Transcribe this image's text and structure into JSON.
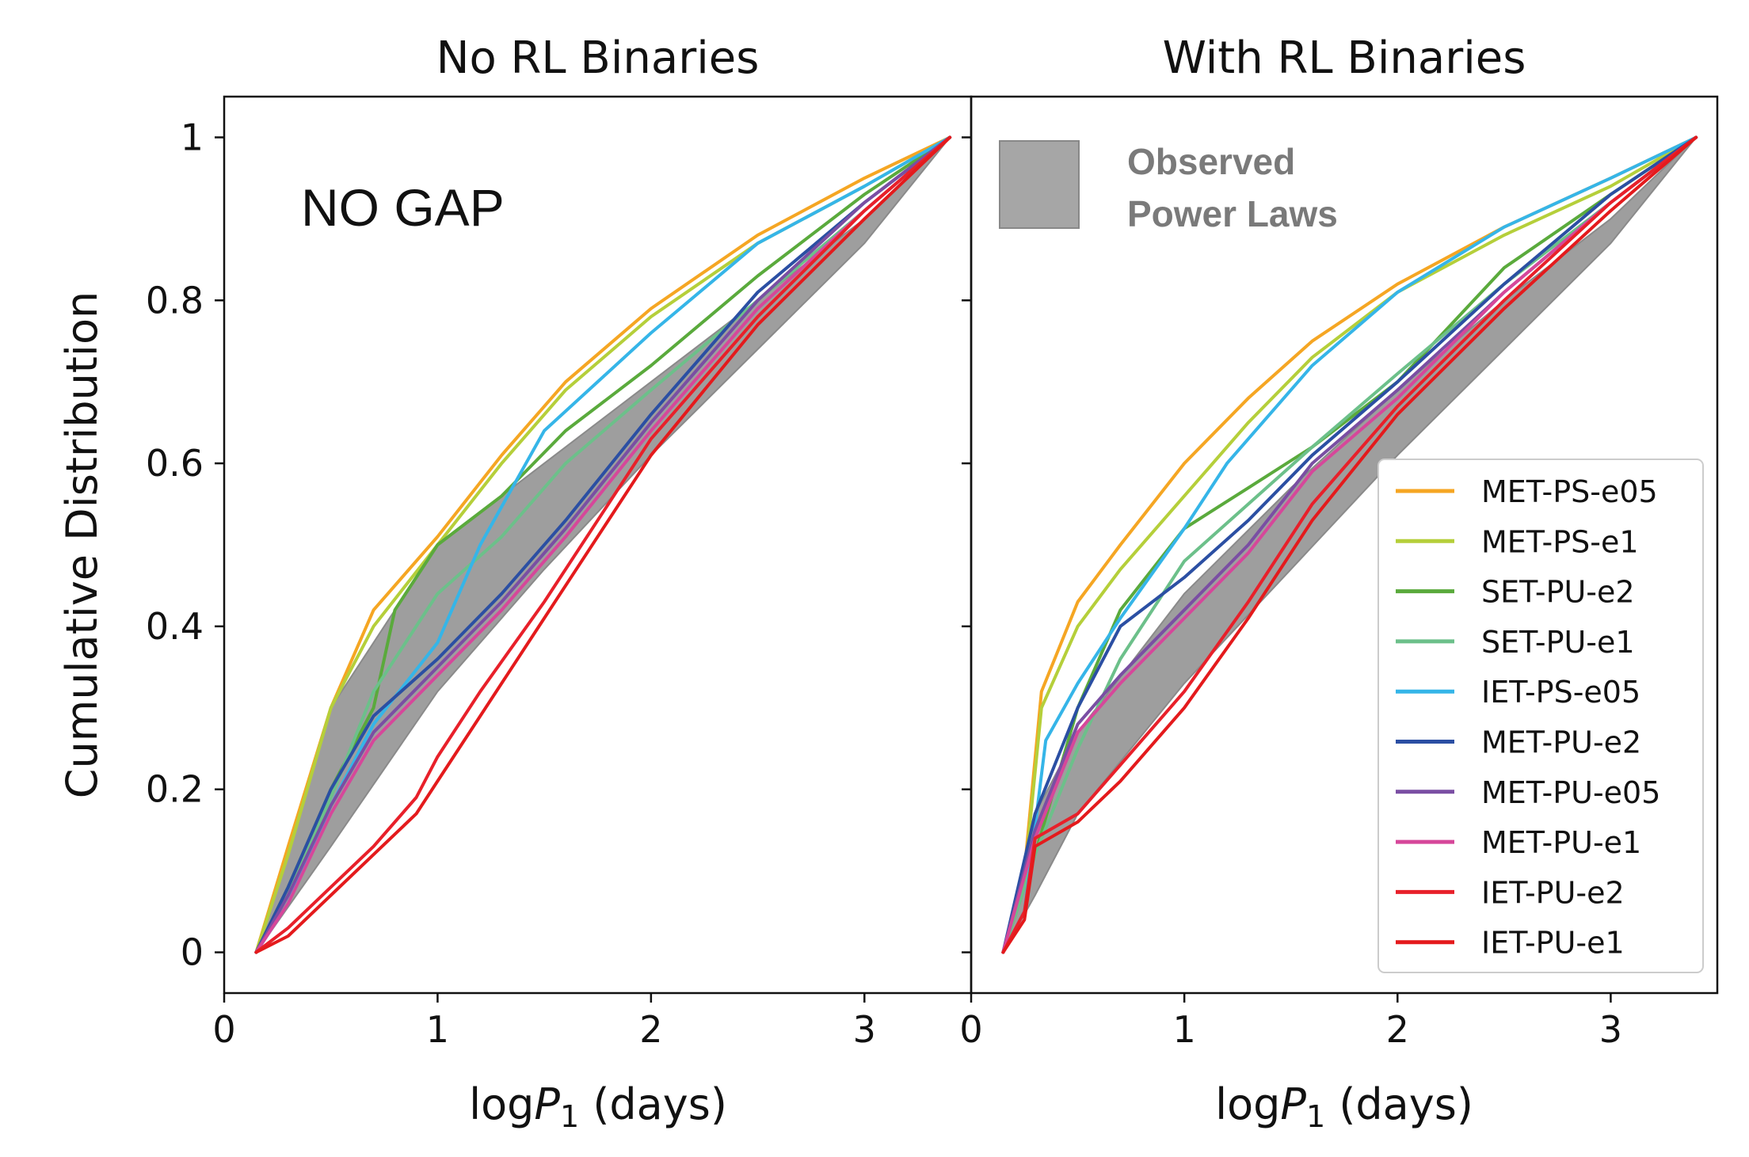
{
  "chart_data": [
    {
      "type": "line",
      "title": "No RL Binaries",
      "annotation": "NO GAP",
      "xlabel": "log",
      "xlabel_var": "P",
      "xlabel_sub": "1",
      "xlabel_unit": "(days)",
      "ylabel": "Cumulative Distribution",
      "xlim": [
        0,
        3.5
      ],
      "ylim": [
        -0.05,
        1.05
      ],
      "xticks": [
        "0",
        "1",
        "2",
        "3"
      ],
      "yticks": [
        "0",
        "0.2",
        "0.4",
        "0.6",
        "0.8",
        "1"
      ],
      "band": {
        "label": "Observed Power Laws",
        "x": [
          0.15,
          0.5,
          1.0,
          1.5,
          2.0,
          2.5,
          3.0,
          3.4
        ],
        "upper": [
          0.0,
          0.3,
          0.5,
          0.6,
          0.7,
          0.8,
          0.9,
          1.0
        ],
        "lower": [
          0.0,
          0.13,
          0.32,
          0.47,
          0.61,
          0.74,
          0.87,
          1.0
        ]
      },
      "series": [
        {
          "name": "MET-PS-e05",
          "color": "#f5a623",
          "x": [
            0.15,
            0.3,
            0.5,
            0.7,
            1.0,
            1.3,
            1.6,
            2.0,
            2.5,
            3.0,
            3.4
          ],
          "y": [
            0,
            0.13,
            0.3,
            0.42,
            0.51,
            0.61,
            0.7,
            0.79,
            0.88,
            0.95,
            1
          ]
        },
        {
          "name": "MET-PS-e1",
          "color": "#b5cf3a",
          "x": [
            0.15,
            0.3,
            0.5,
            0.7,
            1.0,
            1.3,
            1.6,
            2.0,
            2.5,
            3.0,
            3.4
          ],
          "y": [
            0,
            0.12,
            0.3,
            0.4,
            0.5,
            0.6,
            0.69,
            0.78,
            0.87,
            0.94,
            1
          ]
        },
        {
          "name": "SET-PU-e2",
          "color": "#5aaa3c",
          "x": [
            0.15,
            0.3,
            0.5,
            0.7,
            0.8,
            1.0,
            1.3,
            1.6,
            2.0,
            2.5,
            3.0,
            3.4
          ],
          "y": [
            0,
            0.08,
            0.2,
            0.3,
            0.42,
            0.5,
            0.56,
            0.64,
            0.72,
            0.83,
            0.93,
            1
          ]
        },
        {
          "name": "SET-PU-e1",
          "color": "#6cc08a",
          "x": [
            0.15,
            0.3,
            0.5,
            0.7,
            1.0,
            1.3,
            1.6,
            2.0,
            2.5,
            3.0,
            3.4
          ],
          "y": [
            0,
            0.07,
            0.19,
            0.32,
            0.44,
            0.51,
            0.6,
            0.69,
            0.8,
            0.91,
            1
          ]
        },
        {
          "name": "IET-PS-e05",
          "color": "#35b5e8",
          "x": [
            0.15,
            0.3,
            0.5,
            0.7,
            1.0,
            1.2,
            1.5,
            2.0,
            2.5,
            3.0,
            3.4
          ],
          "y": [
            0,
            0.06,
            0.18,
            0.28,
            0.38,
            0.5,
            0.64,
            0.76,
            0.87,
            0.94,
            1
          ]
        },
        {
          "name": "MET-PU-e2",
          "color": "#2b4fa3",
          "x": [
            0.15,
            0.3,
            0.5,
            0.7,
            1.0,
            1.3,
            1.6,
            2.0,
            2.5,
            3.0,
            3.4
          ],
          "y": [
            0,
            0.08,
            0.2,
            0.29,
            0.36,
            0.44,
            0.53,
            0.66,
            0.81,
            0.92,
            1
          ]
        },
        {
          "name": "MET-PU-e05",
          "color": "#7a4ea3",
          "x": [
            0.15,
            0.3,
            0.5,
            0.7,
            1.0,
            1.3,
            1.6,
            2.0,
            2.5,
            3.0,
            3.4
          ],
          "y": [
            0,
            0.07,
            0.18,
            0.27,
            0.35,
            0.43,
            0.52,
            0.65,
            0.8,
            0.92,
            1
          ]
        },
        {
          "name": "MET-PU-e1",
          "color": "#d6479a",
          "x": [
            0.15,
            0.3,
            0.5,
            0.7,
            1.0,
            1.3,
            1.6,
            2.0,
            2.5,
            3.0,
            3.4
          ],
          "y": [
            0,
            0.06,
            0.17,
            0.26,
            0.34,
            0.42,
            0.51,
            0.64,
            0.79,
            0.91,
            1
          ]
        },
        {
          "name": "IET-PU-e2",
          "color": "#e8202a",
          "x": [
            0.15,
            0.3,
            0.5,
            0.7,
            0.9,
            1.0,
            1.2,
            1.5,
            1.8,
            2.0,
            2.5,
            3.0,
            3.4
          ],
          "y": [
            0,
            0.03,
            0.08,
            0.13,
            0.19,
            0.24,
            0.32,
            0.43,
            0.55,
            0.63,
            0.78,
            0.91,
            1
          ]
        },
        {
          "name": "IET-PU-e1",
          "color": "#e41a1c",
          "x": [
            0.15,
            0.3,
            0.5,
            0.7,
            0.9,
            1.0,
            1.2,
            1.5,
            1.8,
            2.0,
            2.5,
            3.0,
            3.4
          ],
          "y": [
            0,
            0.02,
            0.07,
            0.12,
            0.17,
            0.21,
            0.29,
            0.41,
            0.53,
            0.61,
            0.77,
            0.9,
            1
          ]
        }
      ]
    },
    {
      "type": "line",
      "title": "With RL Binaries",
      "xlabel": "log",
      "xlabel_var": "P",
      "xlabel_sub": "1",
      "xlabel_unit": "(days)",
      "ylabel": "",
      "xlim": [
        0,
        3.5
      ],
      "ylim": [
        -0.05,
        1.05
      ],
      "xticks": [
        "0",
        "1",
        "2",
        "3"
      ],
      "legend_position": "lower-right",
      "band": {
        "label": "Observed Power Laws",
        "label_line1": "Observed",
        "label_line2": "Power Laws",
        "x": [
          0.15,
          0.3,
          0.5,
          1.0,
          1.5,
          2.0,
          2.5,
          3.0,
          3.4
        ],
        "upper": [
          0.0,
          0.17,
          0.27,
          0.44,
          0.57,
          0.69,
          0.8,
          0.9,
          1.0
        ],
        "lower": [
          0.0,
          0.07,
          0.17,
          0.33,
          0.47,
          0.61,
          0.74,
          0.87,
          1.0
        ]
      },
      "series": [
        {
          "name": "MET-PS-e05",
          "color": "#f5a623",
          "x": [
            0.15,
            0.25,
            0.33,
            0.5,
            0.7,
            1.0,
            1.3,
            1.6,
            2.0,
            2.5,
            3.0,
            3.4
          ],
          "y": [
            0,
            0.1,
            0.32,
            0.43,
            0.5,
            0.6,
            0.68,
            0.75,
            0.82,
            0.89,
            0.95,
            1
          ]
        },
        {
          "name": "MET-PS-e1",
          "color": "#b5cf3a",
          "x": [
            0.15,
            0.25,
            0.33,
            0.5,
            0.7,
            1.0,
            1.3,
            1.6,
            2.0,
            2.5,
            3.0,
            3.4
          ],
          "y": [
            0,
            0.09,
            0.3,
            0.4,
            0.47,
            0.56,
            0.65,
            0.73,
            0.81,
            0.88,
            0.94,
            1
          ]
        },
        {
          "name": "SET-PU-e2",
          "color": "#5aaa3c",
          "x": [
            0.15,
            0.3,
            0.5,
            0.7,
            1.0,
            1.3,
            1.6,
            2.0,
            2.5,
            3.0,
            3.4
          ],
          "y": [
            0,
            0.12,
            0.3,
            0.42,
            0.52,
            0.57,
            0.62,
            0.7,
            0.84,
            0.93,
            1
          ]
        },
        {
          "name": "SET-PU-e1",
          "color": "#6cc08a",
          "x": [
            0.15,
            0.3,
            0.5,
            0.7,
            1.0,
            1.3,
            1.6,
            2.0,
            2.5,
            3.0,
            3.4
          ],
          "y": [
            0,
            0.12,
            0.25,
            0.36,
            0.48,
            0.55,
            0.62,
            0.71,
            0.82,
            0.92,
            1
          ]
        },
        {
          "name": "IET-PS-e05",
          "color": "#35b5e8",
          "x": [
            0.15,
            0.25,
            0.35,
            0.5,
            0.7,
            1.0,
            1.2,
            1.6,
            2.0,
            2.5,
            3.0,
            3.4
          ],
          "y": [
            0,
            0.05,
            0.26,
            0.33,
            0.41,
            0.52,
            0.6,
            0.72,
            0.81,
            0.89,
            0.95,
            1
          ]
        },
        {
          "name": "MET-PU-e2",
          "color": "#2b4fa3",
          "x": [
            0.15,
            0.3,
            0.5,
            0.7,
            1.0,
            1.3,
            1.6,
            2.0,
            2.5,
            3.0,
            3.4
          ],
          "y": [
            0,
            0.17,
            0.3,
            0.4,
            0.46,
            0.53,
            0.61,
            0.7,
            0.82,
            0.93,
            1
          ]
        },
        {
          "name": "MET-PU-e05",
          "color": "#7a4ea3",
          "x": [
            0.15,
            0.3,
            0.5,
            0.7,
            1.0,
            1.3,
            1.6,
            2.0,
            2.5,
            3.0,
            3.4
          ],
          "y": [
            0,
            0.15,
            0.28,
            0.34,
            0.42,
            0.5,
            0.6,
            0.69,
            0.81,
            0.92,
            1
          ]
        },
        {
          "name": "MET-PU-e1",
          "color": "#d6479a",
          "x": [
            0.15,
            0.3,
            0.5,
            0.7,
            1.0,
            1.3,
            1.6,
            2.0,
            2.5,
            3.0,
            3.4
          ],
          "y": [
            0,
            0.14,
            0.27,
            0.33,
            0.41,
            0.49,
            0.59,
            0.68,
            0.81,
            0.92,
            1
          ]
        },
        {
          "name": "IET-PU-e2",
          "color": "#e8202a",
          "x": [
            0.15,
            0.25,
            0.3,
            0.5,
            0.7,
            1.0,
            1.3,
            1.6,
            2.0,
            2.5,
            3.0,
            3.4
          ],
          "y": [
            0,
            0.05,
            0.14,
            0.17,
            0.23,
            0.32,
            0.43,
            0.55,
            0.67,
            0.8,
            0.92,
            1
          ]
        },
        {
          "name": "IET-PU-e1",
          "color": "#e41a1c",
          "x": [
            0.15,
            0.25,
            0.3,
            0.5,
            0.7,
            1.0,
            1.3,
            1.6,
            2.0,
            2.5,
            3.0,
            3.4
          ],
          "y": [
            0,
            0.04,
            0.13,
            0.16,
            0.21,
            0.3,
            0.41,
            0.53,
            0.66,
            0.79,
            0.91,
            1
          ]
        }
      ]
    }
  ]
}
